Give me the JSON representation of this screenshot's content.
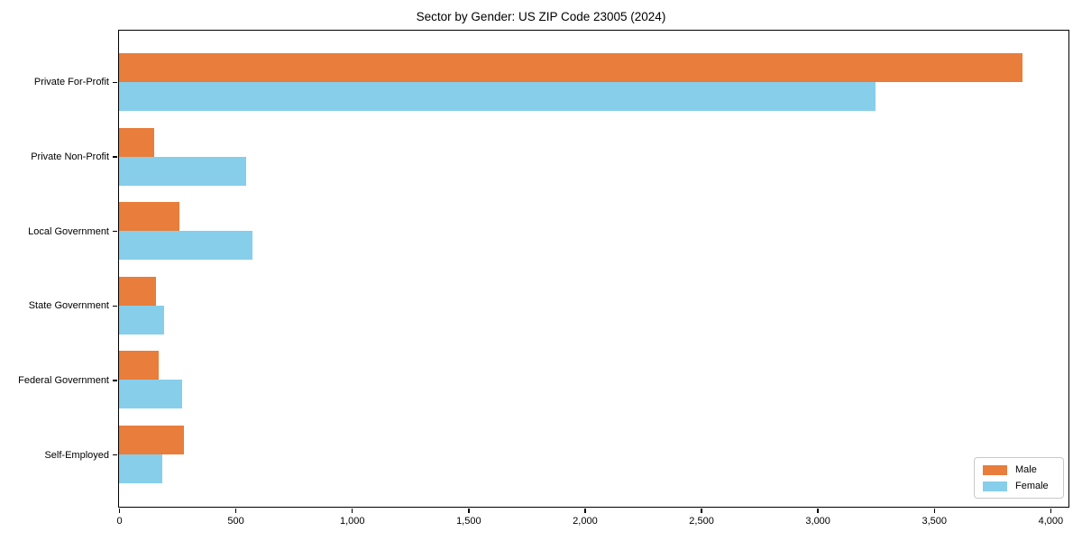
{
  "chart_data": {
    "type": "bar",
    "orientation": "horizontal",
    "title": "Sector by Gender: US ZIP Code 23005 (2024)",
    "categories": [
      "Private For-Profit",
      "Private Non-Profit",
      "Local Government",
      "State Government",
      "Federal Government",
      "Self-Employed"
    ],
    "series": [
      {
        "name": "Male",
        "color": "#e87d3c",
        "values": [
          3880,
          150,
          260,
          160,
          170,
          280
        ]
      },
      {
        "name": "Female",
        "color": "#87ceeb",
        "values": [
          3250,
          545,
          575,
          195,
          270,
          185
        ]
      }
    ],
    "xlabel": "",
    "ylabel": "",
    "xlim": [
      0,
      4074
    ],
    "x_ticks": [
      0,
      500,
      1000,
      1500,
      2000,
      2500,
      3000,
      3500,
      4000
    ],
    "x_tick_labels": [
      "0",
      "500",
      "1,000",
      "1,500",
      "2,000",
      "2,500",
      "3,000",
      "3,500",
      "4,000"
    ],
    "grid": false,
    "legend_position": "lower right"
  }
}
